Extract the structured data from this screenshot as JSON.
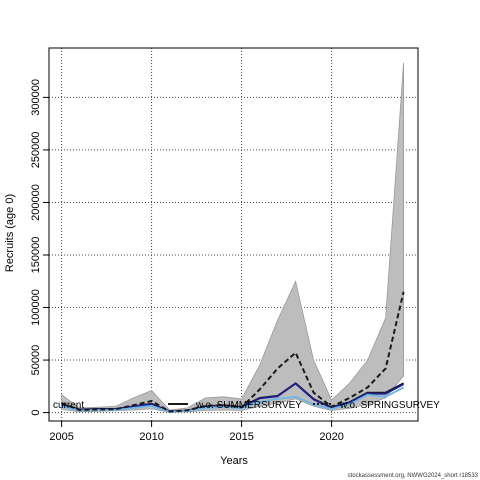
{
  "chart_data": {
    "type": "line",
    "xlabel": "Years",
    "ylabel": "Recruits (age 0)",
    "xlim": [
      2004.3,
      2024.8
    ],
    "ylim": [
      -8000,
      347000
    ],
    "xticks": [
      2005,
      2010,
      2015,
      2020
    ],
    "yticks": [
      0,
      50000,
      100000,
      150000,
      200000,
      250000,
      300000
    ],
    "ytick_labels": [
      "0",
      "50000",
      "100000",
      "150000",
      "200000",
      "250000",
      "300000"
    ],
    "grid": true,
    "x": [
      2005,
      2006,
      2007,
      2008,
      2009,
      2010,
      2011,
      2012,
      2013,
      2014,
      2015,
      2016,
      2017,
      2018,
      2019,
      2020,
      2021,
      2022,
      2023,
      2024
    ],
    "band": {
      "name": "confidence interval",
      "color": "#bdbdbd",
      "lower": [
        3000,
        800,
        1200,
        1800,
        2500,
        3500,
        300,
        800,
        2000,
        2500,
        2000,
        6000,
        9000,
        13000,
        6000,
        2000,
        4000,
        8000,
        14000,
        35000
      ],
      "upper": [
        17000,
        4500,
        5000,
        6000,
        14000,
        21000,
        2500,
        4500,
        14000,
        15000,
        13000,
        45000,
        88000,
        125000,
        50000,
        12000,
        28000,
        50000,
        90000,
        333000
      ]
    },
    "series": [
      {
        "name": "current",
        "color": "#1a1a1a",
        "style": "solid",
        "values": [
          8000,
          3000,
          3500,
          3500,
          6000,
          8500,
          1200,
          2000,
          6000,
          7000,
          5500,
          14000,
          16000,
          28000,
          13000,
          5000,
          10000,
          19000,
          19000,
          28000
        ]
      },
      {
        "name": "w.o. SUMMERSURVEY",
        "color": "#1f1f8f",
        "style": "solid",
        "values": [
          7500,
          2800,
          3300,
          3300,
          5700,
          8000,
          1100,
          1900,
          5700,
          6700,
          5200,
          13500,
          15500,
          27500,
          12500,
          4700,
          9500,
          18000,
          18000,
          27000
        ]
      },
      {
        "name": "w.o. SPRINGSURVEY",
        "color": "#6eb6e6",
        "style": "solid",
        "values": [
          6000,
          2000,
          2500,
          2500,
          4500,
          6500,
          800,
          1500,
          4500,
          5500,
          4000,
          10000,
          13000,
          15000,
          8000,
          3500,
          8000,
          17000,
          15000,
          24000
        ]
      },
      {
        "name": "",
        "color": "#1a1a1a",
        "style": "dashed",
        "values": [
          9000,
          2500,
          3000,
          3200,
          7000,
          11000,
          1000,
          2200,
          6500,
          7000,
          5000,
          22000,
          42000,
          57000,
          19000,
          5500,
          14000,
          24000,
          42000,
          115000
        ]
      }
    ],
    "legend": {
      "placement": "bottom",
      "entries": [
        {
          "label": "current",
          "color": "#1a1a1a",
          "style": "none"
        },
        {
          "label": "w.o. SUMMERSURVEY",
          "color": "#1a1a1a",
          "style": "solid"
        },
        {
          "label": "w.o. SPRINGSURVEY",
          "color": "#1a1a1a",
          "style": "dotted"
        }
      ]
    }
  },
  "caption": "stockassessment.org, NWWG2024_short r18533"
}
